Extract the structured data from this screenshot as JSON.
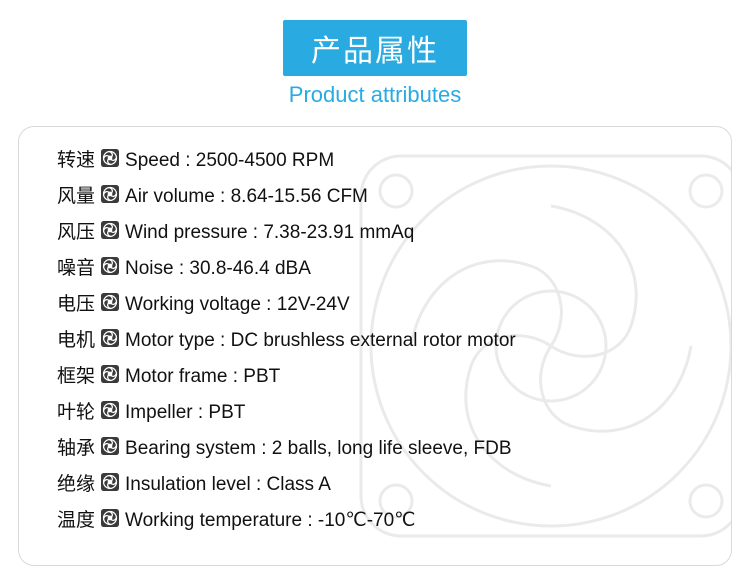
{
  "header": {
    "title_cn": "产品属性",
    "title_en": "Product attributes"
  },
  "colors": {
    "accent": "#29abe2",
    "text": "#111111",
    "border": "#d9d9d9",
    "icon_bg": "#3a3a3a",
    "icon_fg": "#ffffff",
    "background": "#ffffff"
  },
  "attributes": [
    {
      "cn": "转速",
      "en": "Speed : 2500-4500 RPM"
    },
    {
      "cn": "风量",
      "en": "Air volume : 8.64-15.56 CFM"
    },
    {
      "cn": "风压",
      "en": "Wind pressure : 7.38-23.91 mmAq"
    },
    {
      "cn": "噪音",
      "en": "Noise : 30.8-46.4 dBA"
    },
    {
      "cn": "电压",
      "en": "Working voltage :  12V-24V"
    },
    {
      "cn": "电机",
      "en": "Motor type : DC brushless external rotor motor"
    },
    {
      "cn": "框架",
      "en": "Motor frame : PBT"
    },
    {
      "cn": "叶轮",
      "en": "Impeller : PBT"
    },
    {
      "cn": "轴承",
      "en": "Bearing system : 2 balls, long life sleeve, FDB"
    },
    {
      "cn": "绝缘",
      "en": "Insulation level : Class A"
    },
    {
      "cn": "温度",
      "en": "Working temperature : -10℃-70℃"
    }
  ]
}
